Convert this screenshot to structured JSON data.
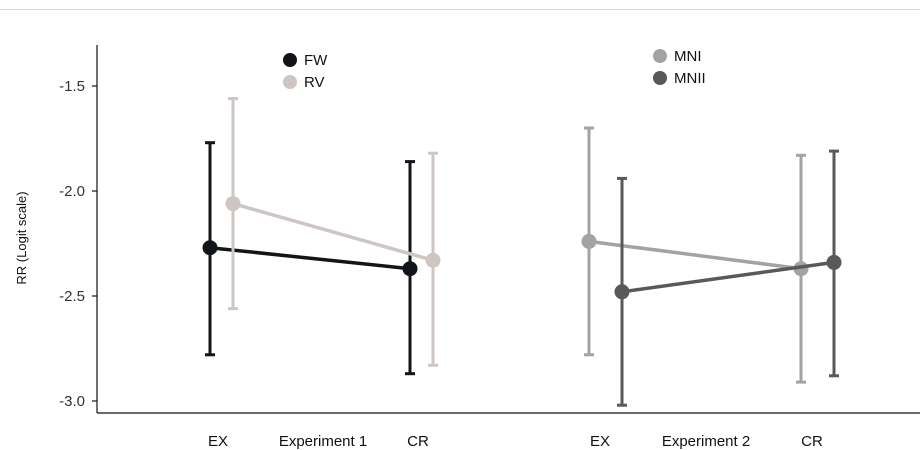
{
  "chart_data": {
    "type": "scatter",
    "ylabel": "RR (Logit scale)",
    "ylim": [
      -3.08,
      -1.25
    ],
    "yticks": [
      -1.5,
      -2.0,
      -2.5,
      -3.0
    ],
    "ytick_labels": [
      "-1.5",
      "-2.0",
      "-2.5",
      "-3.0"
    ],
    "error_bars": true,
    "legend_placement": "top, inside each panel",
    "panels": [
      {
        "group_label": "Experiment 1",
        "categories": [
          "EX",
          "CR"
        ],
        "series": [
          {
            "name": "FW",
            "color": "#111418",
            "values": [
              -2.27,
              -2.37
            ],
            "lower": [
              -2.78,
              -2.87
            ],
            "upper": [
              -1.77,
              -1.86
            ]
          },
          {
            "name": "RV",
            "color": "#cec6c2",
            "values": [
              -2.06,
              -2.33
            ],
            "lower": [
              -2.56,
              -2.83
            ],
            "upper": [
              -1.56,
              -1.82
            ]
          }
        ]
      },
      {
        "group_label": "Experiment 2",
        "categories": [
          "EX",
          "CR"
        ],
        "series": [
          {
            "name": "MNI",
            "color": "#a3a3a3",
            "values": [
              -2.24,
              -2.37
            ],
            "lower": [
              -2.78,
              -2.91
            ],
            "upper": [
              -1.7,
              -1.83
            ]
          },
          {
            "name": "MNII",
            "color": "#595959",
            "values": [
              -2.48,
              -2.34
            ],
            "lower": [
              -3.02,
              -2.88
            ],
            "upper": [
              -1.94,
              -1.81
            ]
          }
        ]
      }
    ]
  }
}
